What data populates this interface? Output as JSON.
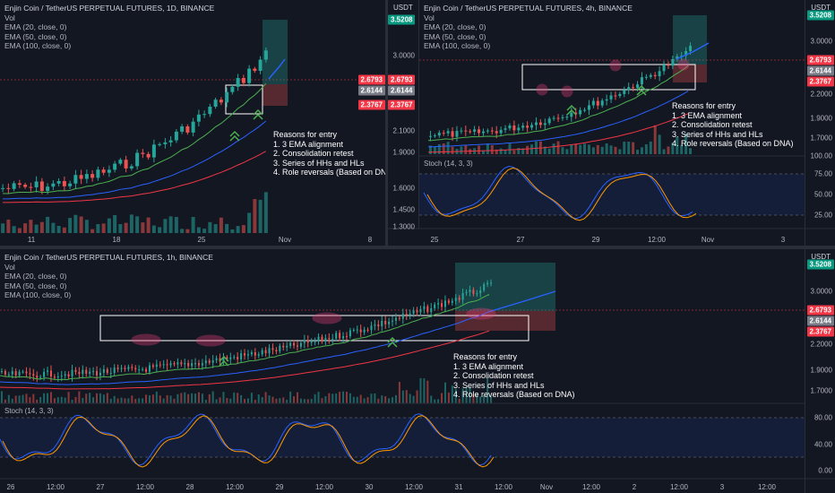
{
  "symbol": "Enjin Coin / TetherUS PERPETUAL FUTURES",
  "exchange": "BINANCE",
  "currency": "USDT",
  "indicators": [
    "Vol",
    "EMA (20, close, 0)",
    "EMA (50, close, 0)",
    "EMA (100, close, 0)"
  ],
  "notes": {
    "title": "Reasons for entry",
    "items": [
      "1. 3 EMA alignment",
      "2. Consolidation retest",
      "3. Series of HHs and HLs",
      "4. Role reversals (Based on DNA)"
    ]
  },
  "colors": {
    "up": "#26a69a",
    "down": "#ef5350",
    "ema20": "#4caf50",
    "ema50": "#2962ff",
    "ema100": "#f23645",
    "stochK": "#2962ff",
    "stochD": "#ff9800",
    "bg": "#131722",
    "zone": "#ec407a"
  },
  "panels": {
    "daily": {
      "title": "Enjin Coin / TetherUS PERPETUAL FUTURES, 1D, BINANCE",
      "x_labels": [
        "11",
        "18",
        "25",
        "Nov",
        "8"
      ],
      "badges": [
        "2.6793",
        "2.6144",
        "2.3767"
      ]
    },
    "h4": {
      "title": "Enjin Coin / TetherUS PERPETUAL FUTURES, 4h, BINANCE",
      "price_labels": [
        "3.5208",
        "3.0000",
        "2.6793",
        "2.6144",
        "2.3767",
        "2.2000",
        "1.9000",
        "1.7000",
        "100.00",
        "75.00",
        "50.00",
        "25.00"
      ],
      "left_labels": [
        "3.5208",
        "3.0000",
        "2.6793",
        "2.6144",
        "2.3767",
        "2.1000",
        "1.9000",
        "1.6000",
        "1.4500",
        "1.3000"
      ],
      "x_labels": [
        "25",
        "27",
        "29",
        "12:00",
        "Nov",
        "3"
      ],
      "stoch": "Stoch (14, 3, 3)"
    },
    "h1": {
      "title": "Enjin Coin / TetherUS PERPETUAL FUTURES, 1h, BINANCE",
      "price_labels": [
        "3.5208",
        "3.0000",
        "2.6793",
        "2.6144",
        "2.3767",
        "2.2000",
        "1.9000",
        "1.7000",
        "80.00",
        "40.00",
        "0.00"
      ],
      "x_labels": [
        "26",
        "12:00",
        "27",
        "12:00",
        "28",
        "12:00",
        "29",
        "12:00",
        "30",
        "12:00",
        "31",
        "12:00",
        "Nov",
        "12:00",
        "2",
        "12:00",
        "3",
        "12:00"
      ],
      "stoch": "Stoch (14, 3, 3)"
    }
  }
}
